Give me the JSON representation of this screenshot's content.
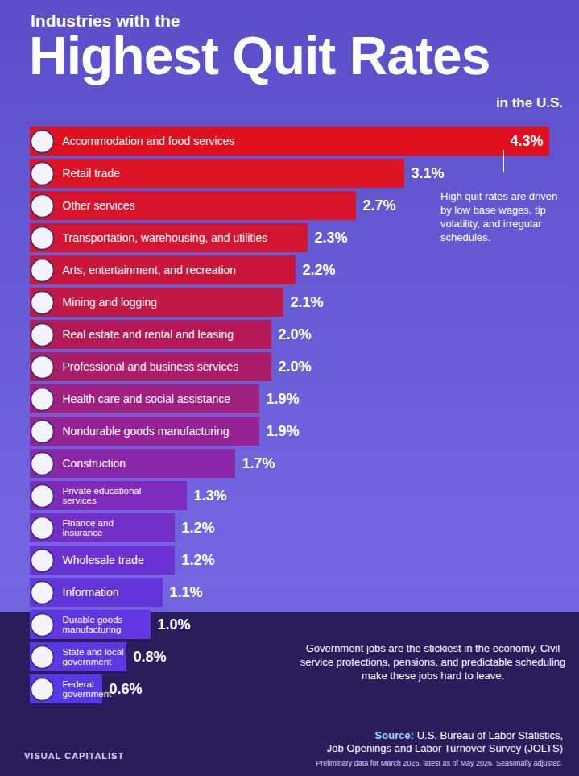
{
  "chart_data": {
    "type": "bar",
    "orientation": "horizontal",
    "supertitle": "Industries with the",
    "title": "Highest Quit Rates",
    "subtitle": "in the U.S.",
    "categories": [
      "Accommodation and food services",
      "Retail trade",
      "Other services",
      "Transportation, warehousing, and utilities",
      "Arts, entertainment, and recreation",
      "Mining and logging",
      "Real estate and rental and leasing",
      "Professional and business services",
      "Health care and social assistance",
      "Nondurable goods manufacturing",
      "Construction",
      "Private educational\nservices",
      "Finance and\ninsurance",
      "Wholesale trade",
      "Information",
      "Durable goods\nmanufacturing",
      "State and local\ngovernment",
      "Federal\ngovernment"
    ],
    "values": [
      4.3,
      3.1,
      2.7,
      2.3,
      2.2,
      2.1,
      2.0,
      2.0,
      1.9,
      1.9,
      1.7,
      1.3,
      1.2,
      1.2,
      1.1,
      1.0,
      0.8,
      0.6
    ],
    "value_labels": [
      "4.3%",
      "3.1%",
      "2.7%",
      "2.3%",
      "2.2%",
      "2.1%",
      "2.0%",
      "2.0%",
      "1.9%",
      "1.9%",
      "1.7%",
      "1.3%",
      "1.2%",
      "1.2%",
      "1.1%",
      "1.0%",
      "0.8%",
      "0.6%"
    ],
    "colors": [
      "#e0101f",
      "#dc1225",
      "#d7142c",
      "#d11533",
      "#ca163b",
      "#c21845",
      "#b61a55",
      "#ab1d67",
      "#a0207f",
      "#962393",
      "#8a27a8",
      "#7e2bbb",
      "#742ec8",
      "#6b31d3",
      "#6434db",
      "#5f36e0",
      "#5a38e3",
      "#5639e6"
    ],
    "xlim": [
      0,
      4.4
    ],
    "data_labels": true,
    "tick_labels": false,
    "grid": false,
    "annotations": [
      "High quit rates are driven by low base wages, tip volatility, and irregular schedules.",
      "Government jobs are the stickiest in the economy. Civil service protections, pensions, and predictable scheduling make these jobs hard to leave."
    ],
    "source_label": "Source:",
    "source": "U.S. Bureau of Labor Statistics,\nJob Openings and Labor Turnover Survey (JOLTS)",
    "footnote": "Preliminary data for March 2026, latest as of May 2026. Seasonally adjusted.",
    "logo": "VISUAL CAPITALIST"
  }
}
